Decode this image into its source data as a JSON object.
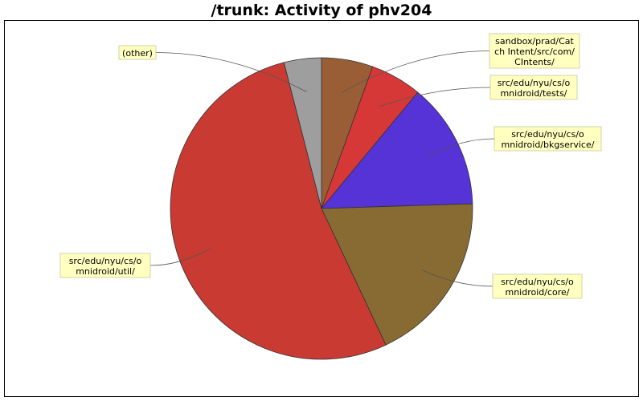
{
  "chart_data": {
    "type": "pie",
    "title": "/trunk: Activity of phv204",
    "slices": [
      {
        "label": "sandbox/prad/Catch Intent/src/com/CIntents/",
        "lines": [
          "sandbox/prad/Cat",
          "ch Intent/src/com/",
          "CIntents/"
        ],
        "value": 5.5,
        "color": "#9a5e36"
      },
      {
        "label": "src/edu/nyu/cs/omnidroid/tests/",
        "lines": [
          "src/edu/nyu/cs/o",
          "mnidroid/tests/"
        ],
        "value": 5.5,
        "color": "#d63838"
      },
      {
        "label": "src/edu/nyu/cs/omnidroid/bkgservice/",
        "lines": [
          "src/edu/nyu/cs/o",
          "mnidroid/bkgservice/"
        ],
        "value": 13.5,
        "color": "#5533d6"
      },
      {
        "label": "src/edu/nyu/cs/omnidroid/core/",
        "lines": [
          "src/edu/nyu/cs/o",
          "mnidroid/core/"
        ],
        "value": 18.5,
        "color": "#886a33"
      },
      {
        "label": "src/edu/nyu/cs/omnidroid/util/",
        "lines": [
          "src/edu/nyu/cs/o",
          "mnidroid/util/"
        ],
        "value": 53,
        "color": "#c93b32"
      },
      {
        "label": "(other)",
        "lines": [
          "(other)"
        ],
        "value": 4,
        "color": "#9e9e9e"
      }
    ]
  }
}
